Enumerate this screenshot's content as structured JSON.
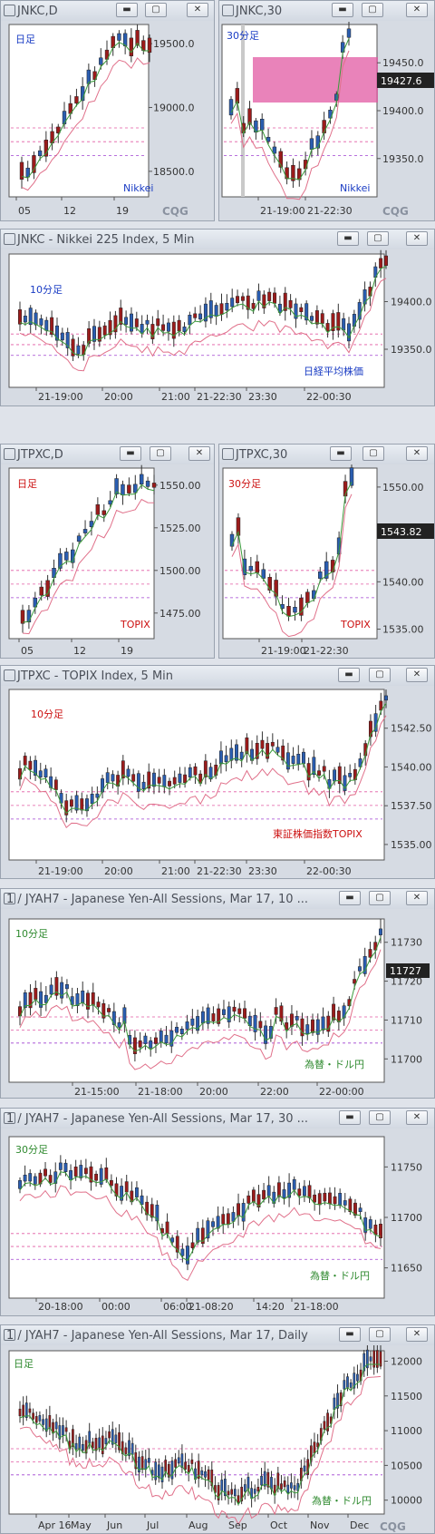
{
  "win_buttons": {
    "min": "▬",
    "max": "▢",
    "close": "✕"
  },
  "colors": {
    "bull": "#2a5db0",
    "bear": "#9b1b1b",
    "label_blue": "#1a3cc4",
    "label_red": "#cc1111",
    "label_green": "#2f8a2f",
    "zone": "#e15aa3",
    "ma_green": "#3a9a3a",
    "ma_pink": "#e0708a",
    "ma_red": "#cc2222"
  },
  "icons": {
    "window": "square-frame-icon",
    "logo": "cqg-logo-icon"
  },
  "panels": [
    {
      "title": "JNKC,D",
      "label": "日足",
      "source": "Nikkei",
      "logo": "CQG",
      "chart_data": {
        "type": "candlestick",
        "ylabels": [
          "19500.0",
          "19000.0",
          "18500.0"
        ],
        "yticks": [
          19500,
          19000,
          18500
        ],
        "ylim": [
          18300,
          19650
        ],
        "xlabels": [
          "05",
          "12",
          "19"
        ]
      }
    },
    {
      "title": "JNKC,30",
      "label": "30分足",
      "source": "Nikkei",
      "logo": "CQG",
      "price": "19427.6",
      "chart_data": {
        "type": "candlestick",
        "ylabels": [
          "19450.0",
          "19400.0",
          "19350.0"
        ],
        "yticks": [
          19450,
          19400,
          19350
        ],
        "ylim": [
          19310,
          19490
        ],
        "xlabels": [
          "21-19:00",
          "21-22:30"
        ]
      }
    },
    {
      "title": "JNKC - Nikkei 225 Index, 5 Min",
      "label": "10分足",
      "source": "日経平均株価",
      "chart_data": {
        "type": "candlestick",
        "ylabels": [
          "19400.0",
          "19350.0"
        ],
        "yticks": [
          19400,
          19350
        ],
        "ylim": [
          19310,
          19450
        ],
        "xlabels": [
          "21-19:00",
          "20:00",
          "21:00",
          "21-22:30",
          "23:30",
          "22-00:30"
        ]
      }
    },
    {
      "title": "JTPXC,D",
      "label": "日足",
      "source": "TOPIX",
      "chart_data": {
        "type": "candlestick",
        "ylabels": [
          "1550.00",
          "1525.00",
          "1500.00",
          "1475.00"
        ],
        "yticks": [
          1550,
          1525,
          1500,
          1475
        ],
        "ylim": [
          1460,
          1560
        ],
        "xlabels": [
          "05",
          "12",
          "19"
        ]
      }
    },
    {
      "title": "JTPXC,30",
      "label": "30分足",
      "source": "TOPIX",
      "price": "1543.82",
      "chart_data": {
        "type": "candlestick",
        "ylabels": [
          "1550.00",
          "1545.00",
          "1540.00",
          "1535.00"
        ],
        "yticks": [
          1550,
          1545,
          1540,
          1535
        ],
        "ylim": [
          1534,
          1552
        ],
        "xlabels": [
          "21-19:00",
          "21-22:30"
        ]
      }
    },
    {
      "title": "JTPXC - TOPIX Index, 5 Min",
      "label": "10分足",
      "source": "東証株価指数TOPIX",
      "chart_data": {
        "type": "candlestick",
        "ylabels": [
          "1542.50",
          "1540.00",
          "1537.50",
          "1535.00"
        ],
        "yticks": [
          1542.5,
          1540,
          1537.5,
          1535
        ],
        "ylim": [
          1534,
          1545
        ],
        "xlabels": [
          "21-19:00",
          "20:00",
          "21:00",
          "21-22:30",
          "23:30",
          "22-00:30"
        ]
      }
    },
    {
      "title": "1 / JYAH7 - Japanese Yen-All Sessions, Mar 17, 10 ...",
      "label": "10分足",
      "source": "為替・ドル円",
      "price": "11727",
      "chart_data": {
        "type": "candlestick",
        "ylabels": [
          "11730",
          "11720",
          "11710",
          "11700"
        ],
        "yticks": [
          11730,
          11720,
          11710,
          11700
        ],
        "ylim": [
          11694,
          11736
        ],
        "xlabels": [
          "21-15:00",
          "21-18:00",
          "20:00",
          "22:00",
          "22-00:00"
        ]
      }
    },
    {
      "title": "1 / JYAH7 - Japanese Yen-All Sessions, Mar 17, 30 ...",
      "label": "30分足",
      "source": "為替・ドル円",
      "chart_data": {
        "type": "candlestick",
        "ylabels": [
          "11750",
          "11700",
          "11650"
        ],
        "yticks": [
          11750,
          11700,
          11650
        ],
        "ylim": [
          11620,
          11780
        ],
        "xlabels": [
          "20-18:00",
          "00:00",
          "06:00",
          "21-08:20",
          "14:20",
          "21-18:00"
        ]
      }
    },
    {
      "title": "1 / JYAH7 - Japanese Yen-All Sessions, Mar 17, Daily",
      "label": "日足",
      "source": "為替・ドル円",
      "logo": "CQG",
      "chart_data": {
        "type": "candlestick",
        "ylabels": [
          "12000",
          "11500",
          "11000",
          "10500",
          "10000"
        ],
        "yticks": [
          12000,
          11500,
          11000,
          10500,
          10000
        ],
        "ylim": [
          9800,
          12150
        ],
        "xlabels": [
          "Apr 16",
          "May",
          "Jun",
          "Jul",
          "Aug",
          "Sep",
          "Oct",
          "Nov",
          "Dec"
        ]
      }
    }
  ]
}
